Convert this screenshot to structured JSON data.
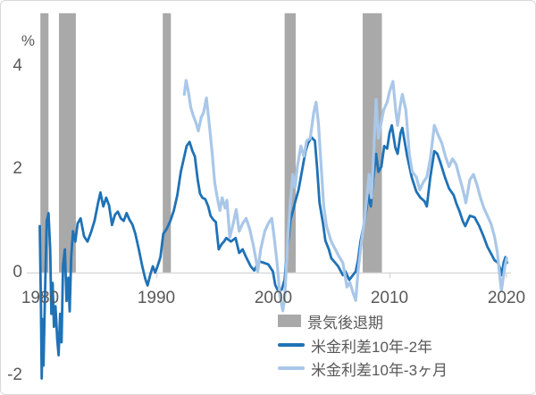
{
  "chart_data": {
    "type": "line",
    "title": "",
    "unit": "%",
    "x_axis": {
      "ticks": [
        1980,
        1990,
        2000,
        2010,
        2020
      ],
      "labels": [
        "1980",
        "1990",
        "2000",
        "2010",
        "2020"
      ],
      "range": [
        1979.8,
        2020.4
      ]
    },
    "y_axis": {
      "unit": "%",
      "ticks": [
        4,
        2,
        0,
        -2
      ],
      "labels": [
        "4",
        "2",
        "0",
        "-2"
      ],
      "range": [
        -2.15,
        5.02
      ],
      "plot_top": 5.02
    },
    "axis_color": "#d9d9d9",
    "legend_position": "bottom, overlapping plot",
    "recessions": {
      "label": "景気後退期",
      "color": "#a9a9a9",
      "periods": [
        [
          1980.05,
          1980.75
        ],
        [
          1981.65,
          1983.1
        ],
        [
          1990.55,
          1991.25
        ],
        [
          2001.0,
          2001.95
        ],
        [
          2007.7,
          2009.35
        ]
      ]
    },
    "series": [
      {
        "name": "米金利差10年-2年",
        "color": "#1f72b6",
        "width": 2.8,
        "points": [
          [
            1980.0,
            0.9
          ],
          [
            1980.1,
            -0.6
          ],
          [
            1980.17,
            -2.05
          ],
          [
            1980.25,
            -0.9
          ],
          [
            1980.32,
            -1.8
          ],
          [
            1980.45,
            -0.4
          ],
          [
            1980.6,
            1.0
          ],
          [
            1980.75,
            1.15
          ],
          [
            1980.9,
            0.45
          ],
          [
            1981.0,
            -0.8
          ],
          [
            1981.1,
            -0.2
          ],
          [
            1981.22,
            -1.05
          ],
          [
            1981.35,
            -0.65
          ],
          [
            1981.5,
            -1.3
          ],
          [
            1981.62,
            -1.6
          ],
          [
            1981.75,
            -0.8
          ],
          [
            1981.87,
            -1.35
          ],
          [
            1982.0,
            0.15
          ],
          [
            1982.15,
            0.45
          ],
          [
            1982.3,
            -0.55
          ],
          [
            1982.45,
            -0.1
          ],
          [
            1982.57,
            -0.75
          ],
          [
            1982.7,
            0.3
          ],
          [
            1982.85,
            0.8
          ],
          [
            1983.05,
            0.6
          ],
          [
            1983.25,
            0.95
          ],
          [
            1983.5,
            1.05
          ],
          [
            1983.8,
            0.7
          ],
          [
            1984.1,
            0.6
          ],
          [
            1984.4,
            0.78
          ],
          [
            1984.7,
            1.0
          ],
          [
            1985.0,
            1.35
          ],
          [
            1985.2,
            1.55
          ],
          [
            1985.45,
            1.28
          ],
          [
            1985.7,
            1.45
          ],
          [
            1985.95,
            1.3
          ],
          [
            1986.2,
            0.92
          ],
          [
            1986.45,
            1.12
          ],
          [
            1986.7,
            1.18
          ],
          [
            1986.95,
            1.05
          ],
          [
            1987.2,
            1.0
          ],
          [
            1987.45,
            1.15
          ],
          [
            1987.7,
            1.02
          ],
          [
            1987.95,
            0.93
          ],
          [
            1988.2,
            0.75
          ],
          [
            1988.5,
            0.45
          ],
          [
            1988.8,
            0.12
          ],
          [
            1989.05,
            -0.12
          ],
          [
            1989.25,
            -0.25
          ],
          [
            1989.5,
            -0.02
          ],
          [
            1989.7,
            0.12
          ],
          [
            1989.9,
            0.0
          ],
          [
            1990.1,
            0.12
          ],
          [
            1990.35,
            0.3
          ],
          [
            1990.6,
            0.75
          ],
          [
            1990.9,
            0.85
          ],
          [
            1991.2,
            1.0
          ],
          [
            1991.5,
            1.2
          ],
          [
            1991.8,
            1.5
          ],
          [
            1992.1,
            1.95
          ],
          [
            1992.4,
            2.25
          ],
          [
            1992.6,
            2.45
          ],
          [
            1992.85,
            2.53
          ],
          [
            1993.1,
            2.35
          ],
          [
            1993.3,
            2.25
          ],
          [
            1993.55,
            1.8
          ],
          [
            1993.75,
            1.53
          ],
          [
            1993.95,
            1.45
          ],
          [
            1994.2,
            1.42
          ],
          [
            1994.45,
            1.28
          ],
          [
            1994.65,
            1.1
          ],
          [
            1994.9,
            1.02
          ],
          [
            1995.1,
            0.98
          ],
          [
            1995.35,
            0.45
          ],
          [
            1995.6,
            0.55
          ],
          [
            1995.8,
            0.6
          ],
          [
            1996.0,
            0.67
          ],
          [
            1996.4,
            0.6
          ],
          [
            1996.8,
            0.67
          ],
          [
            1997.1,
            0.38
          ],
          [
            1997.4,
            0.45
          ],
          [
            1997.7,
            0.3
          ],
          [
            1998.1,
            0.12
          ],
          [
            1998.4,
            0.04
          ],
          [
            1998.8,
            0.22
          ],
          [
            1999.2,
            0.19
          ],
          [
            1999.6,
            0.16
          ],
          [
            2000.0,
            0.02
          ],
          [
            2000.2,
            -0.24
          ],
          [
            2000.45,
            -0.36
          ],
          [
            2000.75,
            -0.33
          ],
          [
            2001.0,
            -0.14
          ],
          [
            2001.2,
            0.38
          ],
          [
            2001.35,
            0.67
          ],
          [
            2001.5,
            1.02
          ],
          [
            2001.75,
            1.22
          ],
          [
            2001.9,
            1.36
          ],
          [
            2002.2,
            1.6
          ],
          [
            2002.6,
            2.1
          ],
          [
            2002.8,
            2.35
          ],
          [
            2003.0,
            2.5
          ],
          [
            2003.3,
            2.62
          ],
          [
            2003.6,
            2.55
          ],
          [
            2003.8,
            2.0
          ],
          [
            2004.0,
            1.35
          ],
          [
            2004.3,
            0.95
          ],
          [
            2004.5,
            0.62
          ],
          [
            2004.8,
            0.45
          ],
          [
            2005.0,
            0.28
          ],
          [
            2005.3,
            0.2
          ],
          [
            2005.6,
            0.12
          ],
          [
            2006.0,
            -0.05
          ],
          [
            2006.2,
            0.03
          ],
          [
            2006.55,
            -0.14
          ],
          [
            2006.8,
            -0.07
          ],
          [
            2007.1,
            0.02
          ],
          [
            2007.3,
            0.24
          ],
          [
            2007.5,
            0.59
          ],
          [
            2007.8,
            0.93
          ],
          [
            2008.0,
            1.19
          ],
          [
            2008.2,
            1.5
          ],
          [
            2008.4,
            1.28
          ],
          [
            2008.6,
            1.8
          ],
          [
            2008.85,
            2.3
          ],
          [
            2009.05,
            1.95
          ],
          [
            2009.3,
            2.05
          ],
          [
            2009.55,
            2.45
          ],
          [
            2009.8,
            2.4
          ],
          [
            2010.0,
            2.7
          ],
          [
            2010.2,
            2.85
          ],
          [
            2010.5,
            2.42
          ],
          [
            2010.7,
            2.3
          ],
          [
            2010.95,
            2.7
          ],
          [
            2011.1,
            2.8
          ],
          [
            2011.5,
            2.27
          ],
          [
            2011.9,
            1.85
          ],
          [
            2012.3,
            1.57
          ],
          [
            2012.65,
            1.45
          ],
          [
            2013.0,
            1.38
          ],
          [
            2013.2,
            1.28
          ],
          [
            2013.5,
            1.85
          ],
          [
            2013.85,
            2.35
          ],
          [
            2014.1,
            2.3
          ],
          [
            2014.35,
            2.14
          ],
          [
            2014.75,
            1.85
          ],
          [
            2015.1,
            1.63
          ],
          [
            2015.5,
            1.5
          ],
          [
            2015.75,
            1.33
          ],
          [
            2016.0,
            1.19
          ],
          [
            2016.3,
            0.99
          ],
          [
            2016.5,
            0.9
          ],
          [
            2016.9,
            1.1
          ],
          [
            2017.3,
            1.07
          ],
          [
            2017.7,
            0.9
          ],
          [
            2018.05,
            0.71
          ],
          [
            2018.4,
            0.5
          ],
          [
            2018.8,
            0.33
          ],
          [
            2019.0,
            0.24
          ],
          [
            2019.3,
            0.19
          ],
          [
            2019.5,
            0.07
          ],
          [
            2019.62,
            -0.05
          ],
          [
            2019.8,
            0.2
          ],
          [
            2019.95,
            0.3
          ],
          [
            2020.08,
            0.19
          ]
        ]
      },
      {
        "name": "米金利差10年-3ヶ月",
        "color": "#a9c7e8",
        "width": 3.2,
        "points": [
          [
            1992.4,
            3.45
          ],
          [
            1992.55,
            3.72
          ],
          [
            1992.75,
            3.5
          ],
          [
            1992.95,
            3.2
          ],
          [
            1993.15,
            3.05
          ],
          [
            1993.4,
            2.9
          ],
          [
            1993.6,
            2.74
          ],
          [
            1993.85,
            3.0
          ],
          [
            1994.05,
            3.1
          ],
          [
            1994.3,
            3.38
          ],
          [
            1994.55,
            2.85
          ],
          [
            1994.8,
            2.3
          ],
          [
            1995.0,
            1.75
          ],
          [
            1995.2,
            1.48
          ],
          [
            1995.45,
            1.2
          ],
          [
            1995.65,
            1.45
          ],
          [
            1995.9,
            1.25
          ],
          [
            1996.05,
            1.4
          ],
          [
            1996.3,
            0.68
          ],
          [
            1996.6,
            0.95
          ],
          [
            1996.85,
            1.22
          ],
          [
            1997.1,
            0.8
          ],
          [
            1997.4,
            0.95
          ],
          [
            1997.7,
            1.05
          ],
          [
            1998.0,
            0.85
          ],
          [
            1998.3,
            0.55
          ],
          [
            1998.55,
            0.25
          ],
          [
            1998.7,
            0.02
          ],
          [
            1998.95,
            0.45
          ],
          [
            1999.3,
            0.8
          ],
          [
            1999.6,
            0.95
          ],
          [
            1999.9,
            1.05
          ],
          [
            2000.1,
            0.7
          ],
          [
            2000.35,
            0.2
          ],
          [
            2000.6,
            -0.45
          ],
          [
            2000.85,
            -0.74
          ],
          [
            2001.0,
            -0.5
          ],
          [
            2001.15,
            0.1
          ],
          [
            2001.3,
            0.75
          ],
          [
            2001.5,
            1.4
          ],
          [
            2001.7,
            1.9
          ],
          [
            2001.9,
            1.65
          ],
          [
            2002.1,
            2.05
          ],
          [
            2002.4,
            2.45
          ],
          [
            2002.65,
            2.25
          ],
          [
            2002.9,
            2.55
          ],
          [
            2003.2,
            2.6
          ],
          [
            2003.5,
            3.1
          ],
          [
            2003.7,
            3.3
          ],
          [
            2003.9,
            2.9
          ],
          [
            2004.1,
            2.2
          ],
          [
            2004.35,
            1.3
          ],
          [
            2004.6,
            0.9
          ],
          [
            2005.0,
            0.6
          ],
          [
            2005.3,
            0.47
          ],
          [
            2005.7,
            0.3
          ],
          [
            2006.0,
            0.19
          ],
          [
            2006.35,
            -0.28
          ],
          [
            2006.6,
            -0.19
          ],
          [
            2006.9,
            -0.41
          ],
          [
            2007.1,
            -0.54
          ],
          [
            2007.3,
            0.03
          ],
          [
            2007.6,
            0.6
          ],
          [
            2007.9,
            1.1
          ],
          [
            2008.1,
            1.55
          ],
          [
            2008.25,
            1.9
          ],
          [
            2008.45,
            1.45
          ],
          [
            2008.6,
            2.1
          ],
          [
            2008.85,
            3.35
          ],
          [
            2009.05,
            2.6
          ],
          [
            2009.2,
            2.8
          ],
          [
            2009.5,
            3.15
          ],
          [
            2009.8,
            3.3
          ],
          [
            2010.0,
            3.5
          ],
          [
            2010.3,
            3.7
          ],
          [
            2010.55,
            3.1
          ],
          [
            2010.7,
            2.85
          ],
          [
            2010.9,
            3.2
          ],
          [
            2011.1,
            3.45
          ],
          [
            2011.4,
            3.15
          ],
          [
            2011.7,
            2.3
          ],
          [
            2011.95,
            1.95
          ],
          [
            2012.3,
            1.85
          ],
          [
            2012.6,
            1.6
          ],
          [
            2012.9,
            1.75
          ],
          [
            2013.2,
            1.85
          ],
          [
            2013.5,
            2.2
          ],
          [
            2013.85,
            2.85
          ],
          [
            2014.2,
            2.65
          ],
          [
            2014.5,
            2.5
          ],
          [
            2014.8,
            2.25
          ],
          [
            2015.1,
            2.05
          ],
          [
            2015.4,
            2.2
          ],
          [
            2015.7,
            2.1
          ],
          [
            2016.0,
            1.85
          ],
          [
            2016.3,
            1.6
          ],
          [
            2016.55,
            1.35
          ],
          [
            2016.9,
            1.8
          ],
          [
            2017.2,
            1.9
          ],
          [
            2017.5,
            1.7
          ],
          [
            2017.8,
            1.45
          ],
          [
            2018.1,
            1.25
          ],
          [
            2018.4,
            1.1
          ],
          [
            2018.7,
            0.95
          ],
          [
            2019.0,
            0.7
          ],
          [
            2019.25,
            0.4
          ],
          [
            2019.45,
            -0.05
          ],
          [
            2019.6,
            -0.35
          ],
          [
            2019.75,
            -0.12
          ],
          [
            2019.9,
            0.12
          ],
          [
            2020.05,
            0.28
          ]
        ]
      }
    ]
  },
  "legend": {
    "items": [
      {
        "label": "景気後退期",
        "swatch": "gray-rect"
      },
      {
        "label": "米金利差10年-2年",
        "swatch": "dark-blue-line"
      },
      {
        "label": "米金利差10年-3ヶ月",
        "swatch": "light-blue-line"
      }
    ]
  }
}
